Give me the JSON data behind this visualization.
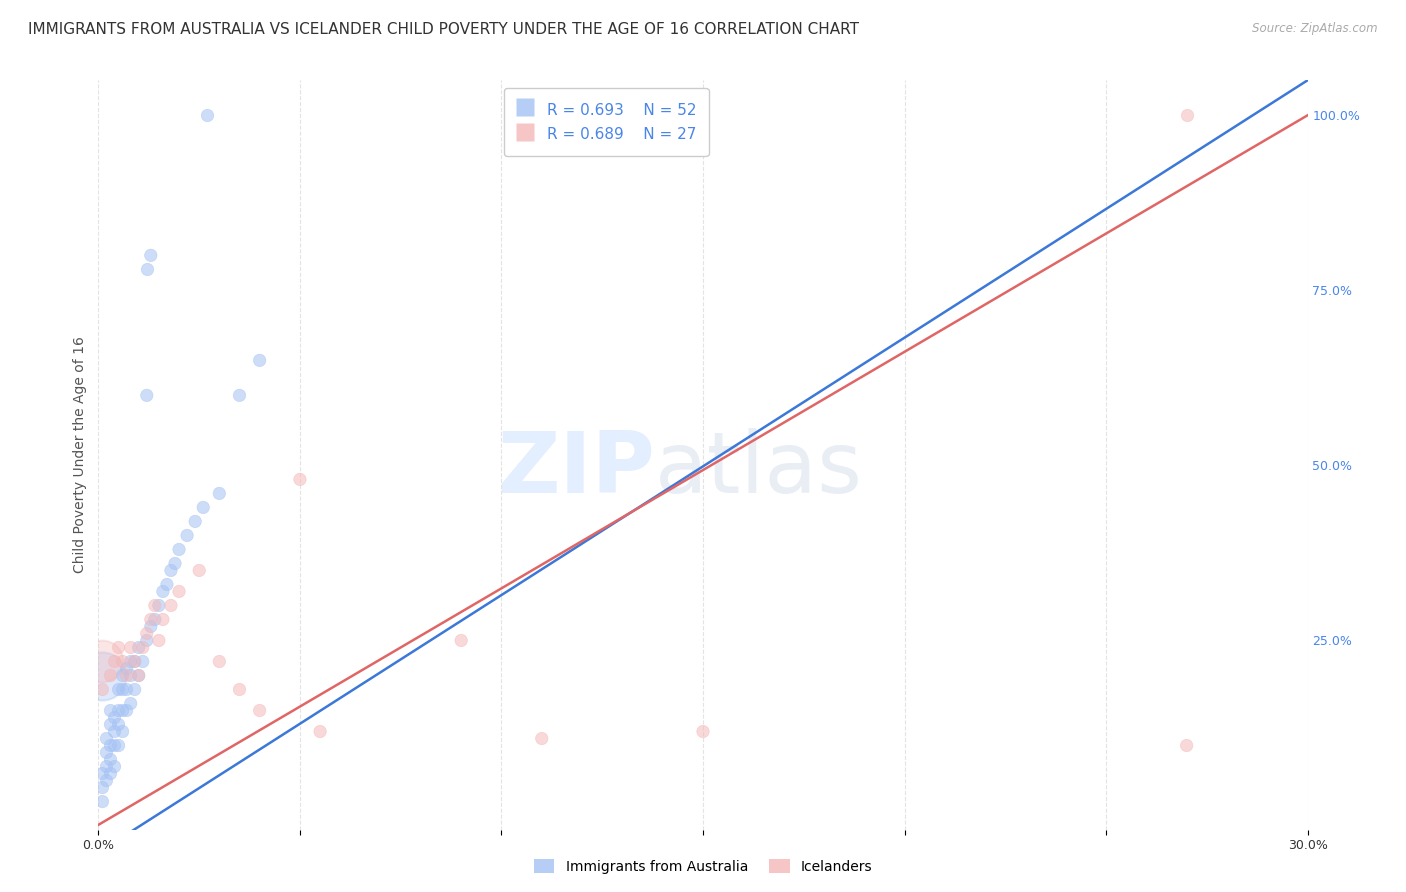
{
  "title": "IMMIGRANTS FROM AUSTRALIA VS ICELANDER CHILD POVERTY UNDER THE AGE OF 16 CORRELATION CHART",
  "source": "Source: ZipAtlas.com",
  "ylabel": "Child Poverty Under the Age of 16",
  "xlim": [
    0.0,
    0.3
  ],
  "ylim": [
    -0.02,
    1.05
  ],
  "xticks": [
    0.0,
    0.05,
    0.1,
    0.15,
    0.2,
    0.25,
    0.3
  ],
  "xticklabels": [
    "0.0%",
    "",
    "",
    "",
    "",
    "",
    "30.0%"
  ],
  "yticks_right": [
    0.0,
    0.25,
    0.5,
    0.75,
    1.0
  ],
  "yticklabels_right": [
    "",
    "25.0%",
    "50.0%",
    "75.0%",
    "100.0%"
  ],
  "blue_color": "#a4c2f4",
  "pink_color": "#f4b8b8",
  "blue_line_color": "#3c78d8",
  "pink_line_color": "#e06666",
  "legend_r1": "R = 0.693",
  "legend_n1": "N = 52",
  "legend_r2": "R = 0.689",
  "legend_n2": "N = 27",
  "legend_label1": "Immigrants from Australia",
  "legend_label2": "Icelanders",
  "watermark": "ZIPatlas",
  "blue_scatter_x": [
    0.001,
    0.001,
    0.001,
    0.002,
    0.002,
    0.002,
    0.002,
    0.003,
    0.003,
    0.003,
    0.003,
    0.003,
    0.004,
    0.004,
    0.004,
    0.004,
    0.005,
    0.005,
    0.005,
    0.005,
    0.006,
    0.006,
    0.006,
    0.006,
    0.007,
    0.007,
    0.007,
    0.008,
    0.008,
    0.008,
    0.009,
    0.009,
    0.01,
    0.01,
    0.011,
    0.012,
    0.013,
    0.014,
    0.015,
    0.016,
    0.017,
    0.018,
    0.019,
    0.02,
    0.022,
    0.024,
    0.026,
    0.03,
    0.035,
    0.04,
    0.012,
    0.013
  ],
  "blue_scatter_y": [
    0.02,
    0.04,
    0.06,
    0.05,
    0.07,
    0.09,
    0.11,
    0.06,
    0.08,
    0.1,
    0.13,
    0.15,
    0.07,
    0.1,
    0.12,
    0.14,
    0.1,
    0.13,
    0.15,
    0.18,
    0.12,
    0.15,
    0.18,
    0.2,
    0.15,
    0.18,
    0.21,
    0.16,
    0.2,
    0.22,
    0.18,
    0.22,
    0.2,
    0.24,
    0.22,
    0.25,
    0.27,
    0.28,
    0.3,
    0.32,
    0.33,
    0.35,
    0.36,
    0.38,
    0.4,
    0.42,
    0.44,
    0.46,
    0.6,
    0.65,
    0.6,
    0.8
  ],
  "blue_scatter_sizes": [
    80,
    80,
    80,
    80,
    80,
    80,
    80,
    80,
    80,
    80,
    80,
    80,
    80,
    80,
    80,
    80,
    80,
    80,
    80,
    80,
    80,
    80,
    80,
    80,
    80,
    80,
    80,
    80,
    80,
    80,
    80,
    80,
    80,
    80,
    80,
    80,
    80,
    80,
    80,
    80,
    80,
    80,
    80,
    80,
    80,
    80,
    80,
    80,
    80,
    80,
    80,
    80
  ],
  "blue_large_x": [
    0.001
  ],
  "blue_large_y": [
    0.2
  ],
  "blue_large_size": [
    1200
  ],
  "pink_scatter_x": [
    0.001,
    0.003,
    0.004,
    0.005,
    0.006,
    0.007,
    0.008,
    0.009,
    0.01,
    0.011,
    0.012,
    0.013,
    0.014,
    0.015,
    0.016,
    0.018,
    0.02,
    0.025,
    0.03,
    0.035,
    0.04,
    0.05,
    0.055,
    0.09,
    0.11,
    0.15,
    0.27
  ],
  "pink_scatter_y": [
    0.18,
    0.2,
    0.22,
    0.24,
    0.22,
    0.2,
    0.24,
    0.22,
    0.2,
    0.24,
    0.26,
    0.28,
    0.3,
    0.25,
    0.28,
    0.3,
    0.32,
    0.35,
    0.22,
    0.18,
    0.15,
    0.48,
    0.12,
    0.25,
    0.11,
    0.12,
    0.1
  ],
  "pink_large_x": [
    0.001
  ],
  "pink_large_y": [
    0.22
  ],
  "pink_large_size": [
    900
  ],
  "pink_scatter_sizes": [
    80,
    80,
    80,
    80,
    80,
    80,
    80,
    80,
    80,
    80,
    80,
    80,
    80,
    80,
    80,
    80,
    80,
    80,
    80,
    80,
    80,
    80,
    80,
    80,
    80,
    80,
    80
  ],
  "blue_line_x": [
    -0.002,
    0.3
  ],
  "blue_line_y": [
    -0.06,
    1.05
  ],
  "pink_line_x": [
    -0.002,
    0.3
  ],
  "pink_line_y": [
    -0.02,
    1.0
  ],
  "grid_color": "#e0e0e0",
  "background_color": "#ffffff",
  "title_fontsize": 11,
  "axis_label_fontsize": 10,
  "tick_fontsize": 9,
  "legend_fontsize": 11,
  "right_tick_color": "#4a86e8"
}
